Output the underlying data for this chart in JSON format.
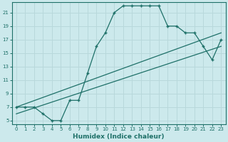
{
  "xlabel": "Humidex (Indice chaleur)",
  "bg_color": "#cce9ec",
  "line_color": "#1e7068",
  "grid_color": "#b8d8db",
  "xlim": [
    -0.5,
    23.5
  ],
  "ylim": [
    4.5,
    22.5
  ],
  "xticks": [
    0,
    1,
    2,
    3,
    4,
    5,
    6,
    7,
    8,
    9,
    10,
    11,
    12,
    13,
    14,
    15,
    16,
    17,
    18,
    19,
    20,
    21,
    22,
    23
  ],
  "yticks": [
    5,
    7,
    9,
    11,
    13,
    15,
    17,
    19,
    21
  ],
  "curve_x": [
    0,
    1,
    2,
    3,
    4,
    5,
    6,
    7,
    8,
    9,
    10,
    11,
    12,
    13,
    14,
    15,
    16,
    17,
    18,
    19,
    20,
    21,
    22,
    23
  ],
  "curve_y": [
    7,
    7,
    7,
    6,
    5,
    5,
    8,
    8,
    12,
    16,
    18,
    21,
    22,
    22,
    22,
    22,
    22,
    19,
    19,
    18,
    18,
    16,
    14,
    17
  ],
  "line2_x": [
    0,
    23
  ],
  "line2_y": [
    7,
    18
  ],
  "line3_x": [
    0,
    23
  ],
  "line3_y": [
    6,
    16
  ]
}
